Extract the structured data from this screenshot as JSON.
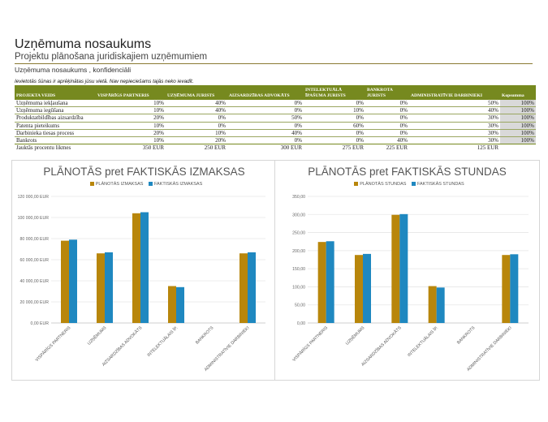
{
  "header": {
    "title": "Uzņēmuma nosaukums",
    "subtitle": "Projektu plānošana juridiskajiem uzņēmumiem",
    "subtitle2": "Uzņēmuma nosaukums , konfidenciāli",
    "note": "Ievietotās šūnas ir aprēķinātas jūsu vietā. Nav nepieciešams tajās neko ievadīt."
  },
  "table": {
    "headers": [
      "PROJEKTA VEIDS",
      "VISPĀRĪGS PARTNERIS",
      "UZŅĒMUMA JURISTS",
      "AIZSARDZĪBAS ADVOKĀTS",
      "INTELEKTUĀLĀ ĪPAŠUMA JURISTS",
      "BANKROTA JURISTS",
      "ADMINISTRATĪVIE DARBINIEKI",
      "Kopsumma"
    ],
    "rows": [
      [
        "Uzņēmuma iekļaušana",
        "10%",
        "40%",
        "0%",
        "0%",
        "0%",
        "50%",
        "100%"
      ],
      [
        "Uzņēmuma iegūšana",
        "10%",
        "40%",
        "0%",
        "10%",
        "0%",
        "40%",
        "100%"
      ],
      [
        "Produktatbildības aizsardzība",
        "20%",
        "0%",
        "50%",
        "0%",
        "0%",
        "30%",
        "100%"
      ],
      [
        "Patenta pieteikums",
        "10%",
        "0%",
        "0%",
        "60%",
        "0%",
        "30%",
        "100%"
      ],
      [
        "Darbinieka tiesas process",
        "20%",
        "10%",
        "40%",
        "0%",
        "0%",
        "30%",
        "100%"
      ],
      [
        "Bankrots",
        "10%",
        "20%",
        "0%",
        "0%",
        "40%",
        "30%",
        "100%"
      ]
    ],
    "avg_label": "Jauktās procentu likmes",
    "avg_values": [
      "350 EUR",
      "250 EUR",
      "300 EUR",
      "275 EUR",
      "225 EUR",
      "125 EUR"
    ]
  },
  "colors": {
    "planned": "#b8860b",
    "actual": "#1f88c0",
    "header_bg": "#76891f"
  },
  "charts": [
    {
      "title": "PLĀNOTĀS pret FAKTISKĀS IZMAKSAS",
      "legend_planned": "PLĀNOTĀS IZMAKSAS",
      "legend_actual": "FAKTISKĀS IZMAKSAS"
    },
    {
      "title": "PLĀNOTĀS pret FAKTISKĀS STUNDAS",
      "legend_planned": "PLĀNOTĀS STUNDAS",
      "legend_actual": "FAKTISKĀS STUNDAS"
    }
  ],
  "chart_data": [
    {
      "type": "bar",
      "title": "PLĀNOTĀS pret FAKTISKĀS IZMAKSAS",
      "categories": [
        "VISPĀRĪGS PARTNERIS",
        "UZŅĒMUMS",
        "AIZSARDZĪBAS ADVOKĀTS",
        "INTELEKTUĀLAIS ĪP.",
        "BANKROTS",
        "ADMINISTRATĪVIE DARBINIEKI"
      ],
      "series": [
        {
          "name": "PLĀNOTĀS IZMAKSAS",
          "values": [
            78000,
            66000,
            104000,
            35000,
            0,
            66000
          ]
        },
        {
          "name": "FAKTISKĀS IZMAKSAS",
          "values": [
            79000,
            67000,
            105000,
            34000,
            0,
            67000
          ]
        }
      ],
      "yticks": [
        "0,00 EUR",
        "20 000,00 EUR",
        "40 000,00 EUR",
        "60 000,00 EUR",
        "80 000,00 EUR",
        "100 000,00 EUR",
        "120 000,00 EUR"
      ],
      "ylim": [
        0,
        120000
      ],
      "grid": true,
      "legend": "top"
    },
    {
      "type": "bar",
      "title": "PLĀNOTĀS pret FAKTISKĀS STUNDAS",
      "categories": [
        "VISPĀRĪGS PARTNERIS",
        "UZŅĒMUMS",
        "AIZSARDZĪBAS ADVOKĀTS",
        "INTELEKTUĀLAIS ĪP.",
        "BANKROTS",
        "ADMINISTRATĪVIE DARBINIEKI"
      ],
      "series": [
        {
          "name": "PLĀNOTĀS STUNDAS",
          "values": [
            224,
            188,
            299,
            102,
            0,
            188
          ]
        },
        {
          "name": "FAKTISKĀS STUNDAS",
          "values": [
            226,
            191,
            301,
            98,
            0,
            190
          ]
        }
      ],
      "yticks": [
        "0,00",
        "50,00",
        "100,00",
        "150,00",
        "200,00",
        "250,00",
        "300,00",
        "350,00"
      ],
      "ylim": [
        0,
        350
      ],
      "grid": true,
      "legend": "top"
    }
  ]
}
